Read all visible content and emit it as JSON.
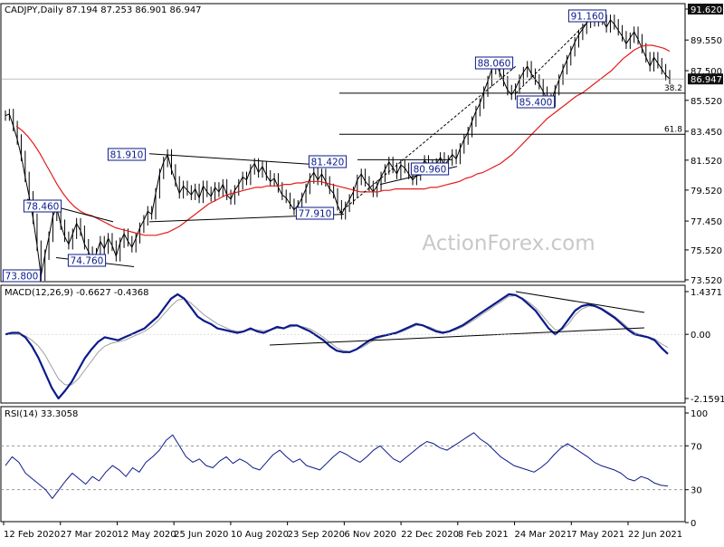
{
  "header": {
    "symbol_line": "CADJPY,Daily  87.194 87.253 86.901 86.947"
  },
  "watermark": "ActionForex.com",
  "colors": {
    "price": "#000000",
    "sma": "#e41b1b",
    "macd": "#0b1a8a",
    "signal": "#a0a0a0",
    "box_border": "#0b1a8a",
    "current_tag_bg": "#111111",
    "current_tag_fg": "#ffffff"
  },
  "chart_data": [
    {
      "type": "line",
      "title": "CADJPY,Daily",
      "ohlc_last": {
        "open": 87.194,
        "high": 87.253,
        "low": 86.901,
        "close": 86.947
      },
      "ylim": [
        73.52,
        91.62
      ],
      "y_ticks": [
        "91.620",
        "89.550",
        "87.500",
        "85.520",
        "83.450",
        "81.520",
        "79.520",
        "77.450",
        "75.520",
        "73.520"
      ],
      "y_tick_values": [
        91.62,
        89.55,
        87.5,
        85.52,
        83.45,
        81.52,
        79.52,
        77.45,
        75.52,
        73.52
      ],
      "current_price": "86.947",
      "current_price_value": 86.947,
      "x_labels": [
        "12 Feb 2020",
        "27 Mar 2020",
        "12 May 2020",
        "25 Jun 2020",
        "10 Aug 2020",
        "23 Sep 2020",
        "6 Nov 2020",
        "22 Dec 2020",
        "8 Feb 2021",
        "24 Mar 2021",
        "7 May 2021",
        "22 Jun 2021"
      ],
      "series": [
        {
          "name": "CADJPY",
          "values": [
            84.5,
            84.6,
            83.8,
            82.9,
            81.8,
            80.4,
            79.1,
            77.6,
            75.8,
            73.8,
            75.2,
            76.4,
            77.8,
            78.3,
            77.2,
            76.4,
            75.9,
            76.6,
            77.3,
            76.8,
            75.9,
            75.4,
            74.8,
            75.3,
            76.1,
            75.6,
            76.3,
            75.8,
            75.1,
            76.0,
            76.6,
            76.1,
            75.7,
            76.3,
            77.0,
            77.5,
            78.1,
            77.9,
            79.3,
            80.6,
            81.4,
            81.9,
            80.9,
            80.1,
            79.3,
            79.8,
            79.5,
            79.2,
            79.6,
            79.0,
            79.8,
            79.4,
            79.1,
            79.7,
            79.4,
            79.9,
            79.2,
            78.9,
            79.5,
            79.9,
            80.4,
            80.2,
            80.9,
            81.3,
            80.7,
            81.1,
            80.5,
            80.1,
            80.3,
            79.7,
            79.2,
            79.0,
            78.6,
            78.2,
            78.5,
            79.0,
            79.6,
            80.3,
            80.7,
            80.2,
            80.6,
            80.1,
            79.6,
            79.3,
            78.5,
            77.9,
            78.4,
            78.9,
            79.4,
            80.2,
            80.6,
            80.1,
            79.8,
            79.4,
            79.8,
            80.4,
            80.9,
            81.4,
            81.0,
            80.6,
            81.2,
            81.0,
            80.6,
            80.2,
            80.5,
            81.0,
            81.5,
            81.2,
            80.9,
            81.3,
            81.7,
            81.2,
            81.5,
            81.9,
            81.6,
            82.3,
            82.9,
            83.4,
            84.1,
            84.8,
            85.3,
            86.1,
            86.8,
            87.6,
            88.06,
            87.4,
            86.8,
            86.2,
            85.9,
            86.3,
            86.9,
            87.4,
            87.8,
            87.3,
            86.9,
            86.6,
            86.1,
            85.6,
            85.4,
            86.2,
            86.9,
            87.6,
            88.2,
            88.8,
            89.4,
            89.9,
            90.3,
            90.7,
            91.0,
            90.8,
            91.16,
            90.9,
            90.4,
            90.9,
            90.6,
            90.2,
            89.8,
            89.3,
            89.7,
            90.1,
            89.6,
            89.0,
            88.4,
            87.8,
            88.4,
            88.0,
            87.6,
            87.2,
            86.947
          ]
        },
        {
          "name": "SMA",
          "values": [
            83.8,
            83.5,
            83.1,
            82.6,
            82.0,
            81.3,
            80.6,
            79.9,
            79.3,
            78.8,
            78.4,
            78.1,
            77.9,
            77.8,
            77.6,
            77.4,
            77.2,
            77.0,
            76.9,
            76.8,
            76.7,
            76.6,
            76.5,
            76.5,
            76.5,
            76.6,
            76.7,
            76.9,
            77.1,
            77.4,
            77.7,
            78.0,
            78.3,
            78.6,
            78.8,
            79.0,
            79.2,
            79.3,
            79.4,
            79.5,
            79.6,
            79.7,
            79.7,
            79.8,
            79.8,
            79.8,
            79.9,
            79.9,
            80.0,
            80.0,
            80.1,
            80.1,
            80.1,
            80.0,
            79.9,
            79.8,
            79.7,
            79.6,
            79.5,
            79.4,
            79.4,
            79.4,
            79.4,
            79.5,
            79.5,
            79.6,
            79.6,
            79.6,
            79.6,
            79.6,
            79.6,
            79.7,
            79.7,
            79.8,
            79.9,
            80.0,
            80.1,
            80.3,
            80.4,
            80.6,
            80.7,
            80.9,
            81.1,
            81.3,
            81.6,
            81.9,
            82.3,
            82.7,
            83.1,
            83.5,
            83.9,
            84.3,
            84.6,
            84.9,
            85.2,
            85.5,
            85.8,
            86.0,
            86.3,
            86.6,
            86.9,
            87.2,
            87.5,
            87.9,
            88.3,
            88.6,
            88.9,
            89.1,
            89.2,
            89.2,
            89.1,
            89.0,
            88.8
          ]
        }
      ],
      "annotations": [
        "73.800",
        "78.460",
        "74.760",
        "81.910",
        "81.420",
        "77.910",
        "80.960",
        "88.060",
        "85.400",
        "91.160"
      ],
      "annotation_values": [
        73.8,
        78.46,
        74.76,
        81.91,
        81.42,
        77.91,
        80.96,
        88.06,
        85.4,
        91.16
      ],
      "fib_levels": [
        {
          "label": "38.2",
          "value": 86.0
        },
        {
          "label": "61.8",
          "value": 83.25
        }
      ],
      "grid": false
    },
    {
      "type": "line",
      "title": "MACD(12,26,9) -0.6627 -0.4368",
      "y_ticks": [
        "1.4371",
        "0.00",
        "-2.1591"
      ],
      "ylim": [
        -2.1591,
        1.4371
      ],
      "series": [
        {
          "name": "MACD",
          "values": [
            0.0,
            0.05,
            0.05,
            -0.1,
            -0.4,
            -0.8,
            -1.3,
            -1.8,
            -2.16,
            -1.9,
            -1.6,
            -1.2,
            -0.8,
            -0.5,
            -0.25,
            -0.1,
            -0.15,
            -0.2,
            -0.1,
            0.0,
            0.1,
            0.2,
            0.4,
            0.6,
            0.9,
            1.2,
            1.35,
            1.2,
            0.9,
            0.6,
            0.45,
            0.35,
            0.2,
            0.15,
            0.1,
            0.05,
            0.1,
            0.2,
            0.1,
            0.05,
            0.15,
            0.25,
            0.2,
            0.3,
            0.3,
            0.2,
            0.1,
            -0.05,
            -0.2,
            -0.4,
            -0.55,
            -0.6,
            -0.6,
            -0.5,
            -0.35,
            -0.2,
            -0.1,
            -0.05,
            0.0,
            0.05,
            0.15,
            0.25,
            0.35,
            0.3,
            0.2,
            0.1,
            0.05,
            0.1,
            0.2,
            0.3,
            0.45,
            0.6,
            0.75,
            0.9,
            1.05,
            1.2,
            1.35,
            1.32,
            1.2,
            1.0,
            0.8,
            0.5,
            0.2,
            0.0,
            0.2,
            0.5,
            0.8,
            0.95,
            1.0,
            0.95,
            0.85,
            0.7,
            0.55,
            0.35,
            0.15,
            0.0,
            -0.05,
            -0.1,
            -0.2,
            -0.45,
            -0.66
          ]
        },
        {
          "name": "Signal",
          "values": [
            0.0,
            0.0,
            0.0,
            -0.05,
            -0.2,
            -0.4,
            -0.7,
            -1.1,
            -1.5,
            -1.7,
            -1.7,
            -1.5,
            -1.2,
            -0.9,
            -0.6,
            -0.4,
            -0.3,
            -0.25,
            -0.2,
            -0.1,
            0.0,
            0.1,
            0.25,
            0.45,
            0.7,
            0.95,
            1.15,
            1.2,
            1.05,
            0.85,
            0.65,
            0.5,
            0.35,
            0.25,
            0.15,
            0.1,
            0.1,
            0.15,
            0.15,
            0.12,
            0.15,
            0.2,
            0.2,
            0.25,
            0.28,
            0.25,
            0.18,
            0.05,
            -0.1,
            -0.28,
            -0.45,
            -0.55,
            -0.58,
            -0.52,
            -0.42,
            -0.28,
            -0.15,
            -0.08,
            -0.02,
            0.03,
            0.1,
            0.2,
            0.3,
            0.3,
            0.25,
            0.15,
            0.08,
            0.08,
            0.15,
            0.25,
            0.38,
            0.52,
            0.68,
            0.82,
            0.98,
            1.12,
            1.28,
            1.3,
            1.22,
            1.08,
            0.9,
            0.65,
            0.38,
            0.15,
            0.15,
            0.35,
            0.65,
            0.85,
            0.95,
            0.95,
            0.88,
            0.75,
            0.6,
            0.42,
            0.22,
            0.06,
            -0.02,
            -0.08,
            -0.15,
            -0.32,
            -0.44
          ]
        }
      ]
    },
    {
      "type": "line",
      "title": "RSI(14) 33.3058",
      "y_ticks": [
        "100",
        "70",
        "30",
        "0"
      ],
      "ylim": [
        0,
        100
      ],
      "levels": [
        70,
        30
      ],
      "series": [
        {
          "name": "RSI",
          "values": [
            52,
            60,
            55,
            45,
            40,
            35,
            30,
            22,
            30,
            38,
            45,
            40,
            35,
            42,
            38,
            46,
            52,
            48,
            42,
            50,
            46,
            55,
            60,
            66,
            75,
            80,
            70,
            60,
            55,
            58,
            52,
            50,
            56,
            60,
            54,
            58,
            55,
            50,
            48,
            55,
            62,
            66,
            60,
            55,
            58,
            52,
            50,
            48,
            54,
            60,
            65,
            62,
            58,
            55,
            60,
            66,
            70,
            64,
            58,
            55,
            60,
            65,
            70,
            74,
            72,
            68,
            66,
            70,
            74,
            78,
            82,
            76,
            72,
            66,
            60,
            56,
            52,
            50,
            48,
            46,
            50,
            55,
            62,
            68,
            72,
            68,
            64,
            60,
            55,
            52,
            50,
            48,
            45,
            40,
            38,
            42,
            40,
            36,
            34,
            33.3
          ]
        }
      ]
    }
  ]
}
